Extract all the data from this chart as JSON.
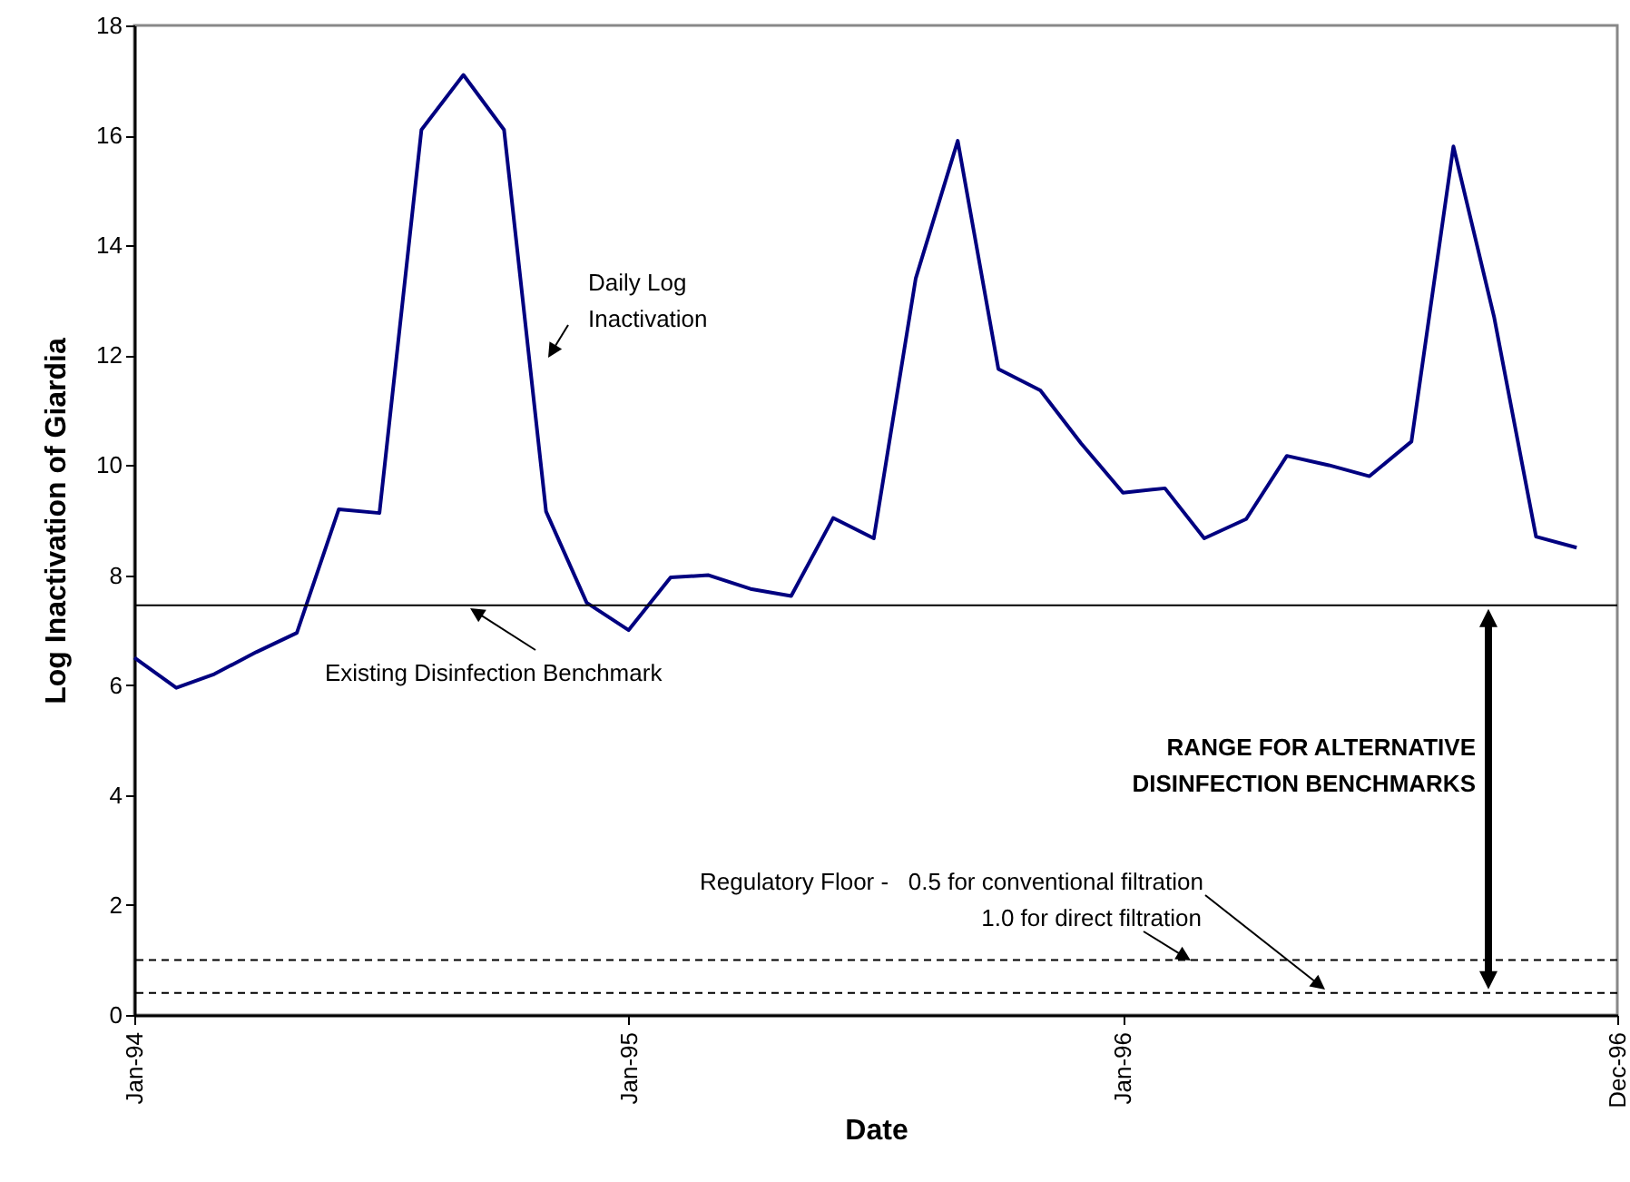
{
  "chart_data": {
    "type": "line",
    "xlabel": "Date",
    "ylabel": "Log Inactivation of Giardia",
    "x": [
      "1994-01",
      "1994-02",
      "1994-03",
      "1994-04",
      "1994-05",
      "1994-06",
      "1994-07",
      "1994-08",
      "1994-09",
      "1994-10",
      "1994-11",
      "1994-12",
      "1995-01",
      "1995-02",
      "1995-03",
      "1995-04",
      "1995-05",
      "1995-06",
      "1995-07",
      "1995-08",
      "1995-09",
      "1995-10",
      "1995-11",
      "1995-12",
      "1996-01",
      "1996-02",
      "1996-03",
      "1996-04",
      "1996-05",
      "1996-06",
      "1996-07",
      "1996-08",
      "1996-09",
      "1996-10",
      "1996-11",
      "1996-12"
    ],
    "series": [
      {
        "color": "#000080",
        "values": [
          6.5,
          5.95,
          6.2,
          6.6,
          6.95,
          9.2,
          9.13,
          16.1,
          17.1,
          16.1,
          9.16,
          7.5,
          7.0,
          7.96,
          8.0,
          7.75,
          7.62,
          9.04,
          8.67,
          13.4,
          15.9,
          11.75,
          11.36,
          10.4,
          9.5,
          9.58,
          8.67,
          9.02,
          10.17,
          10.0,
          9.8,
          10.43,
          15.8,
          12.7,
          8.7,
          8.5
        ]
      }
    ],
    "xlim": [
      "1994-01-01",
      "1996-12-31"
    ],
    "xticks": [
      {
        "value": "1994-01-01",
        "label": "Jan-94"
      },
      {
        "value": "1995-01-01",
        "label": "Jan-95"
      },
      {
        "value": "1996-01-01",
        "label": "Jan-96"
      },
      {
        "value": "1996-12-31",
        "label": "Dec-96"
      }
    ],
    "ylim": [
      0,
      18
    ],
    "yticks": [
      0,
      2,
      4,
      6,
      8,
      10,
      12,
      14,
      16,
      18
    ],
    "grid": false,
    "marker": "none",
    "line_style": "solid",
    "ref_lines": [
      {
        "axis": "y",
        "value": 7.45,
        "label": "Existing Disinfection Benchmark",
        "color": "#000000",
        "line_style": "solid"
      },
      {
        "axis": "y",
        "value": 1.0,
        "color": "#000000",
        "line_style": "dashed"
      },
      {
        "axis": "y",
        "value": 0.4,
        "color": "#000000",
        "line_style": "dashed"
      }
    ],
    "annotations": [
      "Daily Log\nInactivation",
      "RANGE FOR ALTERNATIVE\nDISINFECTION BENCHMARKS",
      "Regulatory Floor -   0.5 for conventional filtration",
      "1.0 for direct filtration"
    ]
  }
}
